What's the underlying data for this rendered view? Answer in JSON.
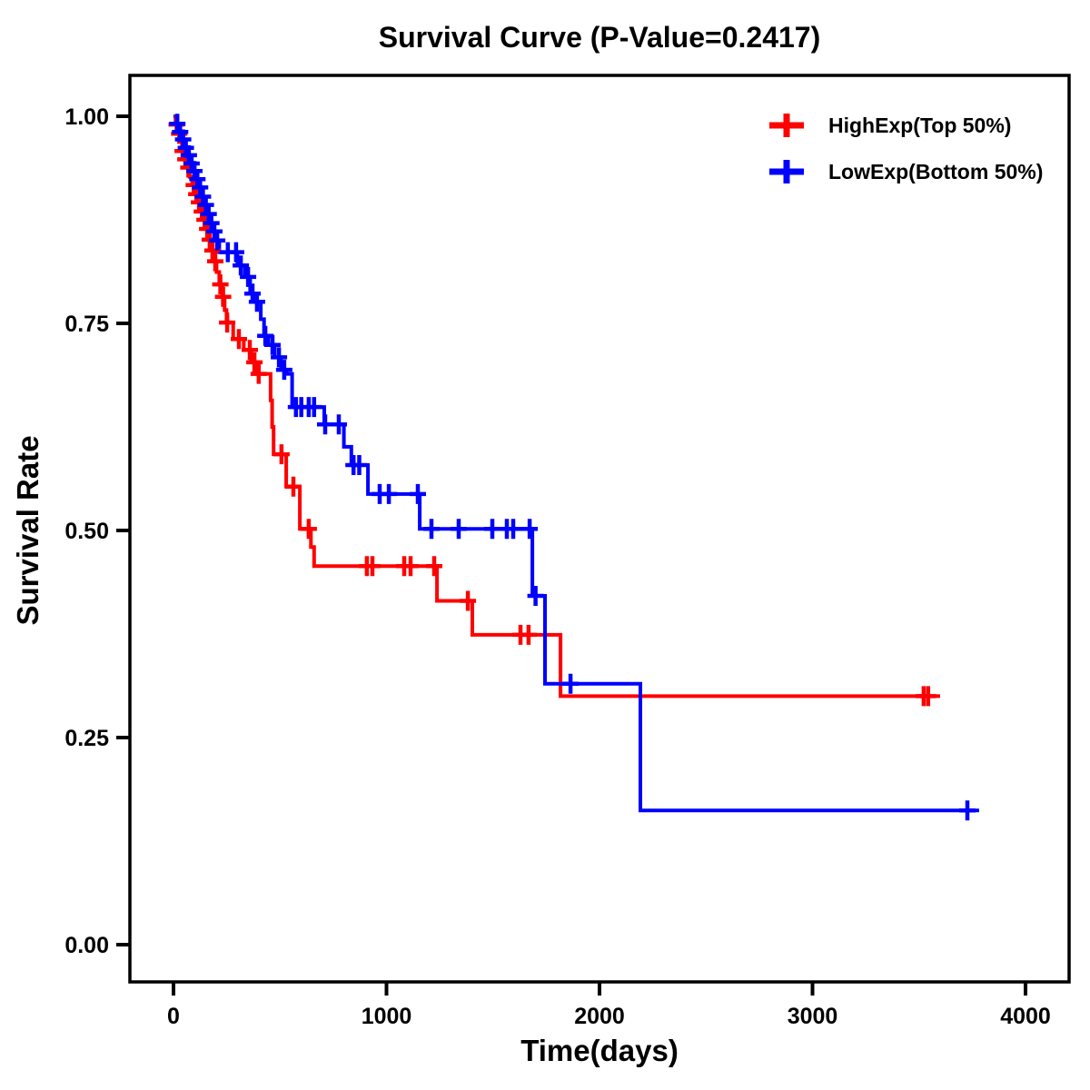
{
  "title": "Survival Curve (P-Value=0.2417)",
  "x_axis": {
    "label": "Time(days)",
    "range": [
      0,
      4000
    ],
    "tick_values": [
      0,
      1000,
      2000,
      3000,
      4000
    ],
    "tick_labels": [
      "0",
      "1000",
      "2000",
      "3000",
      "4000"
    ]
  },
  "y_axis": {
    "label": "Survival Rate",
    "range": [
      0,
      1
    ],
    "tick_values": [
      0,
      0.25,
      0.5,
      0.75,
      1.0
    ],
    "tick_labels": [
      "0.00",
      "0.25",
      "0.50",
      "0.75",
      "1.00"
    ]
  },
  "legend": [
    {
      "label": "HighExp(Top 50%)",
      "color": "#ff0000"
    },
    {
      "label": "LowExp(Bottom 50%)",
      "color": "#0000ff"
    }
  ],
  "colors": {
    "frame": "#000000",
    "text": "#000000",
    "high": "#ff0000",
    "low": "#0000ff"
  },
  "chart_data": {
    "type": "line",
    "subtype": "kaplan-meier-step",
    "title": "Survival Curve (P-Value=0.2417)",
    "xlabel": "Time(days)",
    "ylabel": "Survival Rate",
    "xlim": [
      0,
      4000
    ],
    "ylim": [
      0,
      1
    ],
    "grid": false,
    "legend_position": "top-right",
    "series": [
      {
        "name": "HighExp(Top 50%)",
        "color": "#ff0000",
        "end_time": 3599,
        "steps": [
          [
            0,
            1.0
          ],
          [
            10,
            0.99
          ],
          [
            20,
            0.979
          ],
          [
            30,
            0.969
          ],
          [
            40,
            0.958
          ],
          [
            52,
            0.948
          ],
          [
            64,
            0.938
          ],
          [
            76,
            0.927
          ],
          [
            88,
            0.917
          ],
          [
            100,
            0.906
          ],
          [
            112,
            0.896
          ],
          [
            124,
            0.885
          ],
          [
            137,
            0.875
          ],
          [
            150,
            0.864
          ],
          [
            163,
            0.851
          ],
          [
            176,
            0.838
          ],
          [
            189,
            0.825
          ],
          [
            202,
            0.812
          ],
          [
            215,
            0.797
          ],
          [
            230,
            0.782
          ],
          [
            240,
            0.766
          ],
          [
            249,
            0.751
          ],
          [
            280,
            0.731
          ],
          [
            330,
            0.718
          ],
          [
            365,
            0.703
          ],
          [
            390,
            0.689
          ],
          [
            456,
            0.657
          ],
          [
            463,
            0.625
          ],
          [
            470,
            0.592
          ],
          [
            529,
            0.553
          ],
          [
            593,
            0.502
          ],
          [
            645,
            0.48
          ],
          [
            660,
            0.457
          ],
          [
            1237,
            0.415
          ],
          [
            1403,
            0.374
          ],
          [
            1817,
            0.3
          ]
        ],
        "censors": [
          [
            15,
            0.99
          ],
          [
            27,
            0.979
          ],
          [
            43,
            0.958
          ],
          [
            56,
            0.948
          ],
          [
            70,
            0.938
          ],
          [
            95,
            0.917
          ],
          [
            107,
            0.906
          ],
          [
            120,
            0.896
          ],
          [
            133,
            0.885
          ],
          [
            146,
            0.875
          ],
          [
            158,
            0.864
          ],
          [
            170,
            0.851
          ],
          [
            183,
            0.838
          ],
          [
            196,
            0.825
          ],
          [
            220,
            0.797
          ],
          [
            233,
            0.782
          ],
          [
            252,
            0.751
          ],
          [
            307,
            0.731
          ],
          [
            358,
            0.718
          ],
          [
            380,
            0.703
          ],
          [
            400,
            0.689
          ],
          [
            507,
            0.592
          ],
          [
            563,
            0.553
          ],
          [
            635,
            0.502
          ],
          [
            908,
            0.457
          ],
          [
            934,
            0.457
          ],
          [
            1083,
            0.457
          ],
          [
            1113,
            0.457
          ],
          [
            1224,
            0.457
          ],
          [
            1382,
            0.415
          ],
          [
            1629,
            0.374
          ],
          [
            1667,
            0.374
          ],
          [
            3522,
            0.3
          ],
          [
            3543,
            0.3
          ]
        ]
      },
      {
        "name": "LowExp(Bottom 50%)",
        "color": "#0000ff",
        "end_time": 3782,
        "steps": [
          [
            0,
            1.0
          ],
          [
            12,
            0.991
          ],
          [
            25,
            0.981
          ],
          [
            38,
            0.972
          ],
          [
            52,
            0.962
          ],
          [
            65,
            0.953
          ],
          [
            78,
            0.943
          ],
          [
            92,
            0.934
          ],
          [
            105,
            0.924
          ],
          [
            118,
            0.914
          ],
          [
            132,
            0.903
          ],
          [
            145,
            0.893
          ],
          [
            158,
            0.882
          ],
          [
            172,
            0.871
          ],
          [
            185,
            0.861
          ],
          [
            198,
            0.85
          ],
          [
            215,
            0.836
          ],
          [
            300,
            0.82
          ],
          [
            335,
            0.806
          ],
          [
            360,
            0.786
          ],
          [
            385,
            0.776
          ],
          [
            410,
            0.755
          ],
          [
            425,
            0.735
          ],
          [
            445,
            0.724
          ],
          [
            475,
            0.709
          ],
          [
            505,
            0.694
          ],
          [
            530,
            0.689
          ],
          [
            557,
            0.649
          ],
          [
            708,
            0.628
          ],
          [
            800,
            0.601
          ],
          [
            835,
            0.579
          ],
          [
            913,
            0.544
          ],
          [
            1156,
            0.502
          ],
          [
            1685,
            0.421
          ],
          [
            1744,
            0.315
          ],
          [
            2192,
            0.162
          ]
        ],
        "censors": [
          [
            18,
            0.991
          ],
          [
            31,
            0.981
          ],
          [
            45,
            0.972
          ],
          [
            58,
            0.962
          ],
          [
            72,
            0.953
          ],
          [
            85,
            0.943
          ],
          [
            98,
            0.934
          ],
          [
            112,
            0.924
          ],
          [
            125,
            0.914
          ],
          [
            138,
            0.903
          ],
          [
            152,
            0.893
          ],
          [
            165,
            0.882
          ],
          [
            178,
            0.871
          ],
          [
            192,
            0.861
          ],
          [
            205,
            0.85
          ],
          [
            255,
            0.836
          ],
          [
            294,
            0.836
          ],
          [
            316,
            0.82
          ],
          [
            350,
            0.806
          ],
          [
            371,
            0.786
          ],
          [
            392,
            0.776
          ],
          [
            431,
            0.735
          ],
          [
            465,
            0.724
          ],
          [
            495,
            0.709
          ],
          [
            520,
            0.694
          ],
          [
            575,
            0.649
          ],
          [
            600,
            0.649
          ],
          [
            635,
            0.649
          ],
          [
            660,
            0.649
          ],
          [
            712,
            0.628
          ],
          [
            776,
            0.628
          ],
          [
            845,
            0.579
          ],
          [
            872,
            0.579
          ],
          [
            968,
            0.544
          ],
          [
            1011,
            0.544
          ],
          [
            1147,
            0.544
          ],
          [
            1211,
            0.502
          ],
          [
            1339,
            0.502
          ],
          [
            1497,
            0.502
          ],
          [
            1565,
            0.502
          ],
          [
            1595,
            0.502
          ],
          [
            1672,
            0.502
          ],
          [
            1700,
            0.421
          ],
          [
            1864,
            0.315
          ],
          [
            3727,
            0.162
          ]
        ]
      }
    ]
  }
}
